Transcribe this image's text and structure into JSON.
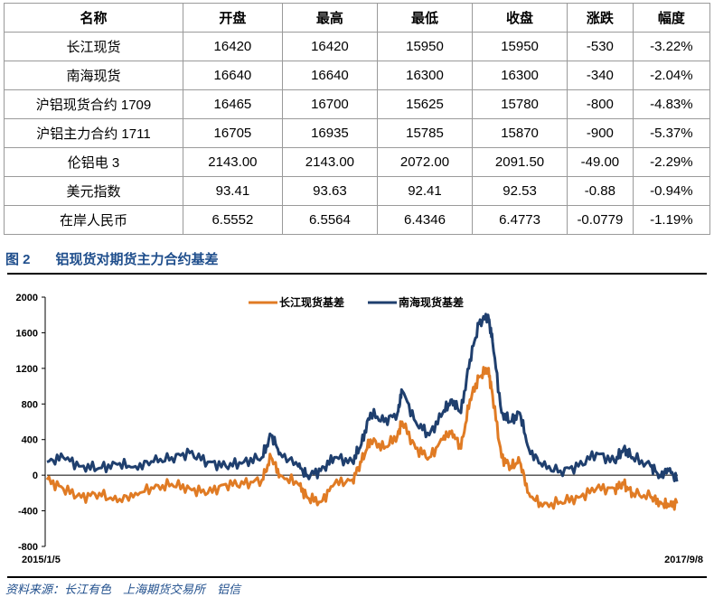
{
  "table": {
    "headers": [
      "名称",
      "开盘",
      "最高",
      "最低",
      "收盘",
      "涨跌",
      "幅度"
    ],
    "rows": [
      [
        "长江现货",
        "16420",
        "16420",
        "15950",
        "15950",
        "-530",
        "-3.22%"
      ],
      [
        "南海现货",
        "16640",
        "16640",
        "16300",
        "16300",
        "-340",
        "-2.04%"
      ],
      [
        "沪铝现货合约 1709",
        "16465",
        "16700",
        "15625",
        "15780",
        "-800",
        "-4.83%"
      ],
      [
        "沪铝主力合约 1711",
        "16705",
        "16935",
        "15785",
        "15870",
        "-900",
        "-5.37%"
      ],
      [
        "伦铝电 3",
        "2143.00",
        "2143.00",
        "2072.00",
        "2091.50",
        "-49.00",
        "-2.29%"
      ],
      [
        "美元指数",
        "93.41",
        "93.63",
        "92.41",
        "92.53",
        "-0.88",
        "-0.94%"
      ],
      [
        "在岸人民币",
        "6.5552",
        "6.5564",
        "6.4346",
        "6.4773",
        "-0.0779",
        "-1.19%"
      ]
    ]
  },
  "figure": {
    "number": "图 2",
    "title": "铝现货对期货主力合约基差"
  },
  "source": "资料来源：长江有色　上海期货交易所　铝信",
  "chart_data": {
    "type": "line",
    "title": "",
    "xlabel": "",
    "ylabel": "",
    "ylim": [
      -800,
      2000
    ],
    "yticks": [
      -800,
      -400,
      0,
      400,
      800,
      1200,
      1600,
      2000
    ],
    "xtick_labels": [
      "2015/1/5",
      "2017/9/8"
    ],
    "x_unit": "days since 2015/1/5",
    "xlim": [
      0,
      977
    ],
    "legend_position": "top-center",
    "grid": false,
    "x": [
      0,
      25,
      53,
      81,
      109,
      137,
      165,
      193,
      221,
      249,
      277,
      305,
      333,
      347,
      361,
      389,
      403,
      424,
      445,
      473,
      487,
      501,
      522,
      543,
      550,
      571,
      592,
      613,
      627,
      641,
      655,
      669,
      683,
      690,
      704,
      718,
      732,
      746,
      767,
      795,
      823,
      851,
      879,
      893,
      907,
      935,
      949,
      963,
      977
    ],
    "series": [
      {
        "name": "长江现货基差",
        "color": "#e07b24",
        "values": [
          -50,
          -150,
          -250,
          -200,
          -300,
          -200,
          -150,
          -100,
          -150,
          -200,
          -100,
          -100,
          -50,
          200,
          0,
          -100,
          -250,
          -300,
          -100,
          -50,
          150,
          400,
          300,
          450,
          600,
          300,
          200,
          400,
          500,
          300,
          850,
          1100,
          1200,
          900,
          200,
          100,
          150,
          -200,
          -350,
          -300,
          -250,
          -150,
          -150,
          -100,
          -200,
          -250,
          -300,
          -350,
          -300
        ]
      },
      {
        "name": "南海现货基差",
        "color": "#1f3f6e",
        "values": [
          150,
          200,
          100,
          80,
          120,
          100,
          150,
          200,
          250,
          150,
          100,
          150,
          200,
          450,
          250,
          100,
          0,
          50,
          200,
          150,
          350,
          700,
          600,
          700,
          950,
          600,
          450,
          700,
          850,
          700,
          1300,
          1700,
          1800,
          1500,
          700,
          600,
          700,
          300,
          100,
          50,
          100,
          250,
          150,
          300,
          200,
          100,
          0,
          50,
          -50
        ]
      }
    ]
  }
}
